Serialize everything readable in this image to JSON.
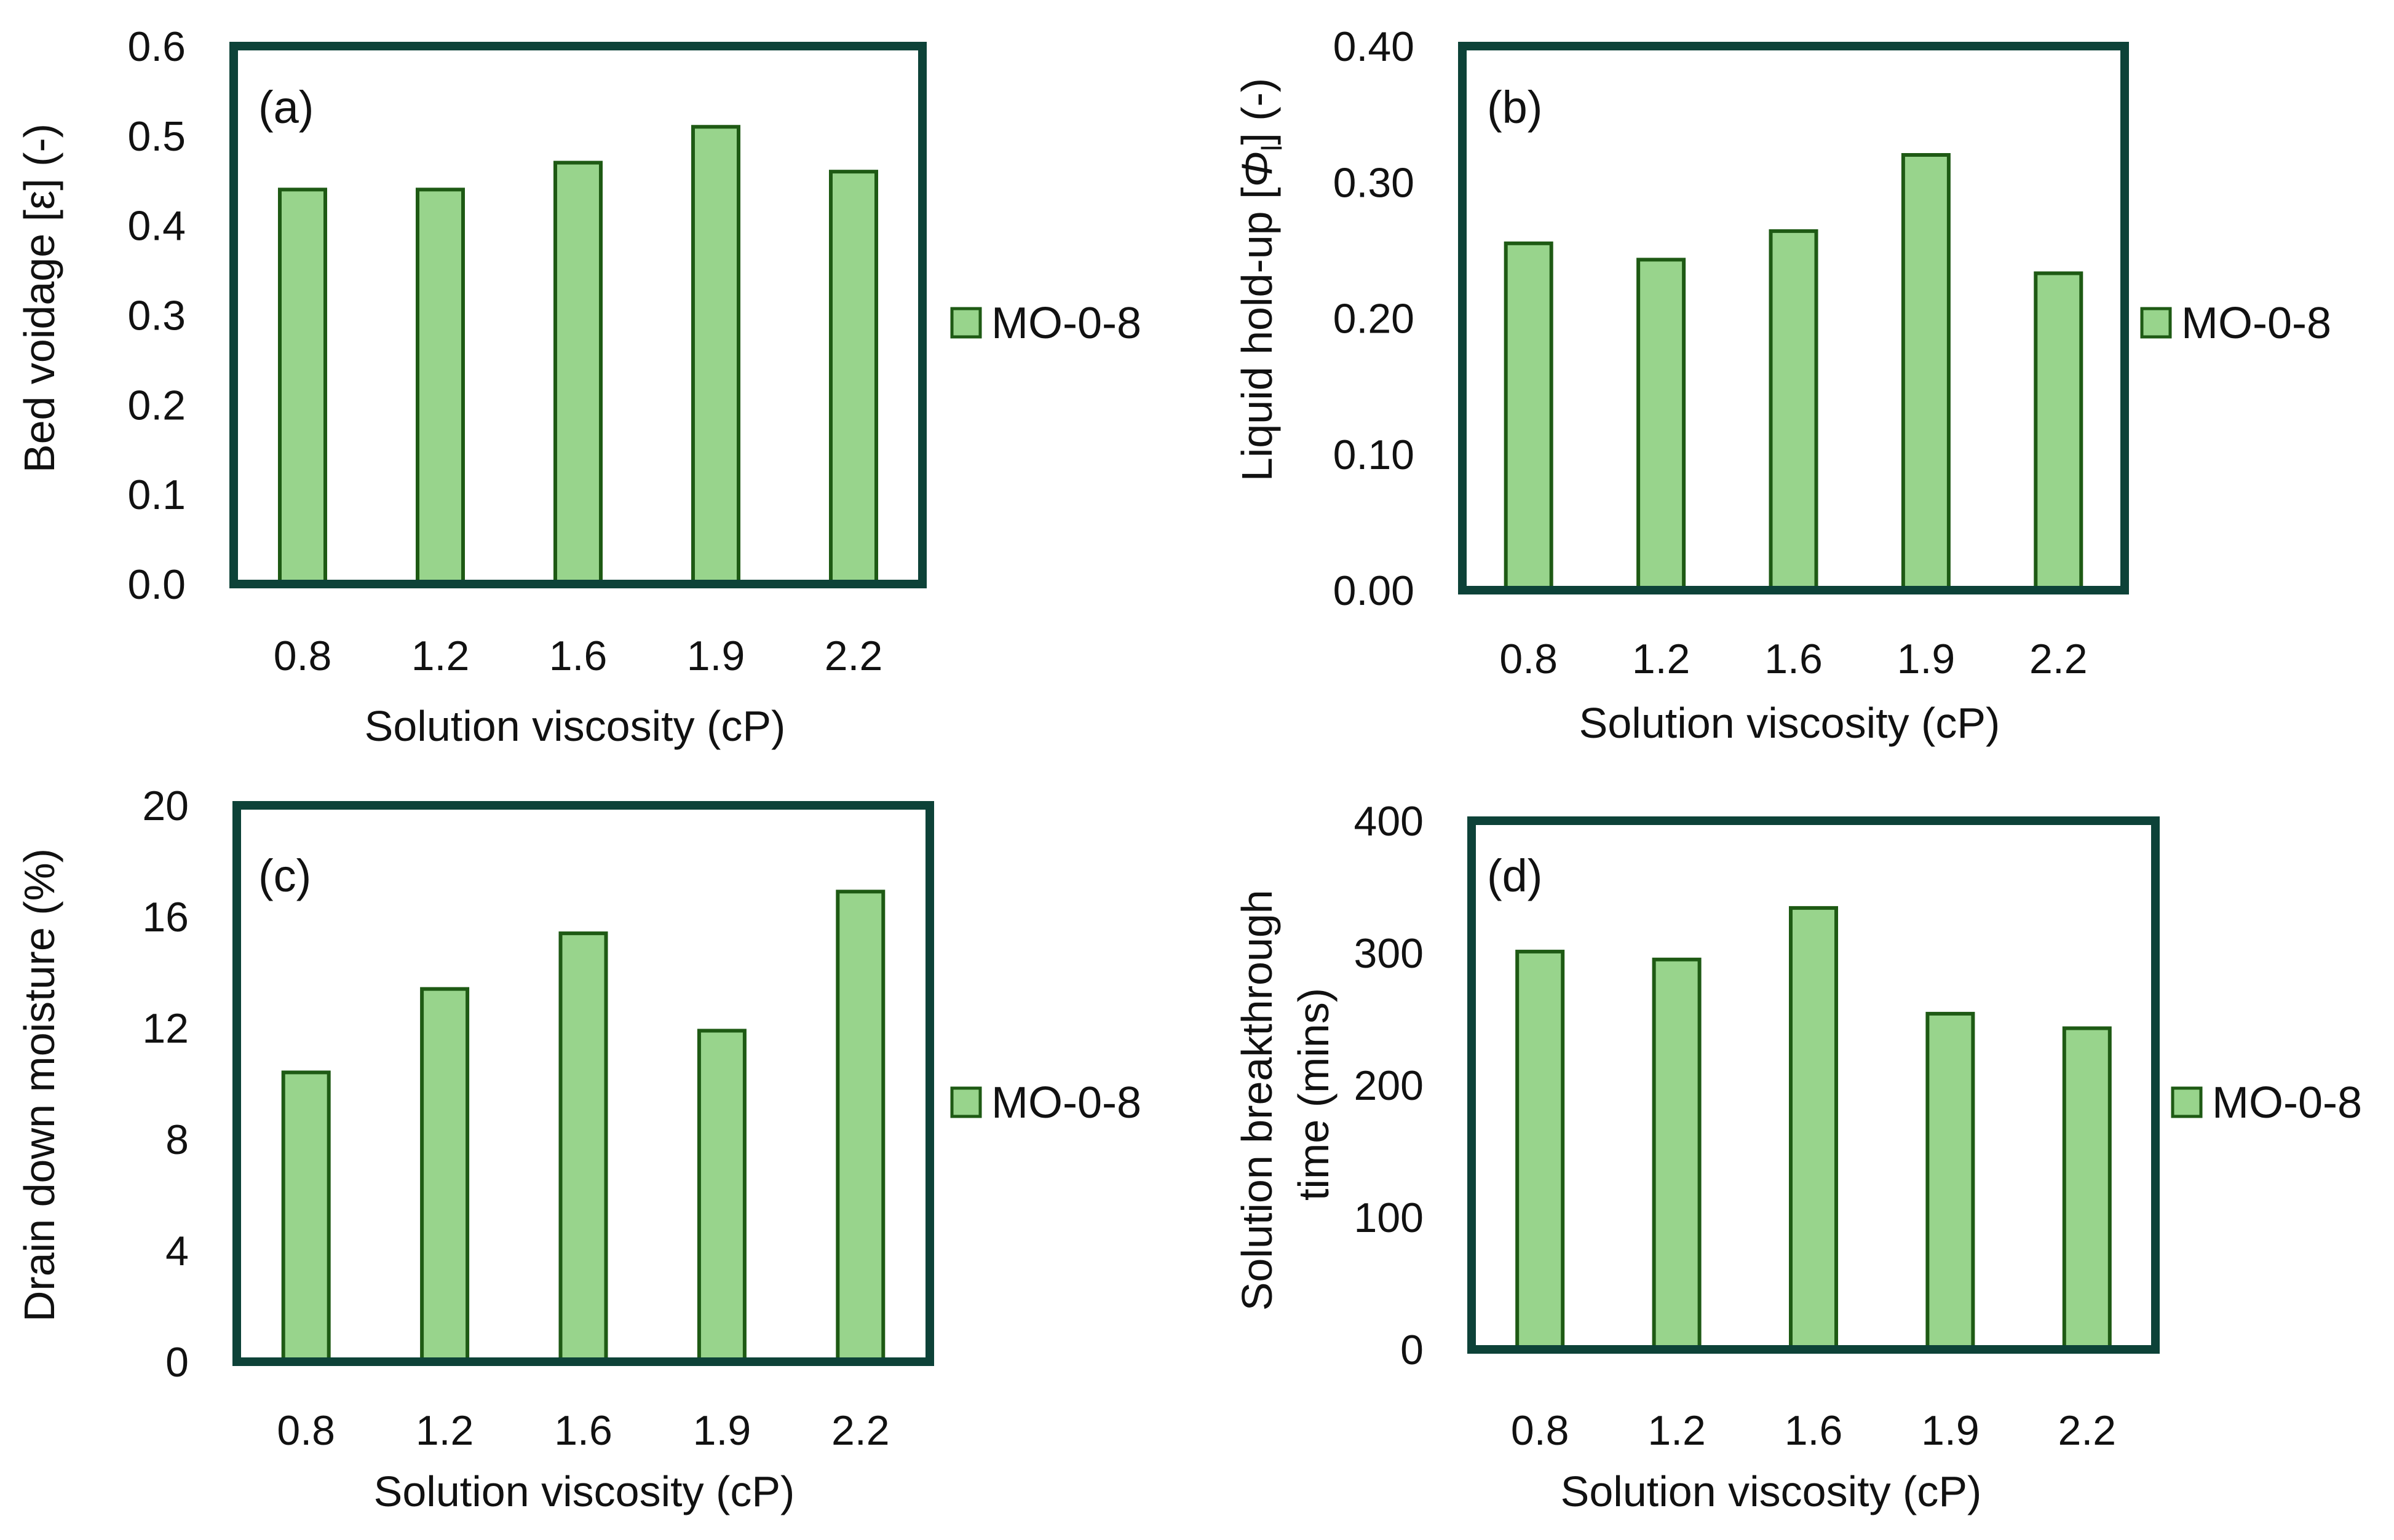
{
  "colors": {
    "bar_fill": "#98d48c",
    "bar_stroke": "#1e5a14",
    "frame": "#0d4238",
    "baseline": "#9fb8b2"
  },
  "chart_data": [
    {
      "type": "bar",
      "panel_label": "(a)",
      "categories": [
        "0.8",
        "1.2",
        "1.6",
        "1.9",
        "2.2"
      ],
      "series": [
        {
          "name": "MO-0-8",
          "values": [
            0.44,
            0.44,
            0.47,
            0.51,
            0.46
          ]
        }
      ],
      "xlabel": "Solution viscosity (cP)",
      "ylabel": "Bed voidage [ε] (-)",
      "ylim": [
        0,
        0.6
      ],
      "yticks": [
        "0.0",
        "0.1",
        "0.2",
        "0.3",
        "0.4",
        "0.5",
        "0.6"
      ],
      "legend": "right"
    },
    {
      "type": "bar",
      "panel_label": "(b)",
      "categories": [
        "0.8",
        "1.2",
        "1.6",
        "1.9",
        "2.2"
      ],
      "series": [
        {
          "name": "MO-0-8",
          "values": [
            0.255,
            0.243,
            0.264,
            0.32,
            0.233
          ]
        }
      ],
      "xlabel": "Solution viscosity (cP)",
      "ylabel": "Liquid hold-up [Φl] (-)",
      "ylim": [
        0,
        0.4
      ],
      "yticks": [
        "0.00",
        "0.10",
        "0.20",
        "0.30",
        "0.40"
      ],
      "legend": "right"
    },
    {
      "type": "bar",
      "panel_label": "(c)",
      "categories": [
        "0.8",
        "1.2",
        "1.6",
        "1.9",
        "2.2"
      ],
      "series": [
        {
          "name": "MO-0-8",
          "values": [
            10.4,
            13.4,
            15.4,
            11.9,
            16.9
          ]
        }
      ],
      "xlabel": "Solution viscosity (cP)",
      "ylabel": "Drain down moisture (%)",
      "ylim": [
        0,
        20
      ],
      "yticks": [
        "0",
        "4",
        "8",
        "12",
        "16",
        "20"
      ],
      "legend": "right"
    },
    {
      "type": "bar",
      "panel_label": "(d)",
      "categories": [
        "0.8",
        "1.2",
        "1.6",
        "1.9",
        "2.2"
      ],
      "series": [
        {
          "name": "MO-0-8",
          "values": [
            301,
            295,
            334,
            254,
            243
          ]
        }
      ],
      "xlabel": "Solution viscosity (cP)",
      "ylabel": "Solution breakthrough time (mins)",
      "ylim": [
        0,
        400
      ],
      "yticks": [
        "0",
        "100",
        "200",
        "300",
        "400"
      ],
      "legend": "right"
    }
  ]
}
